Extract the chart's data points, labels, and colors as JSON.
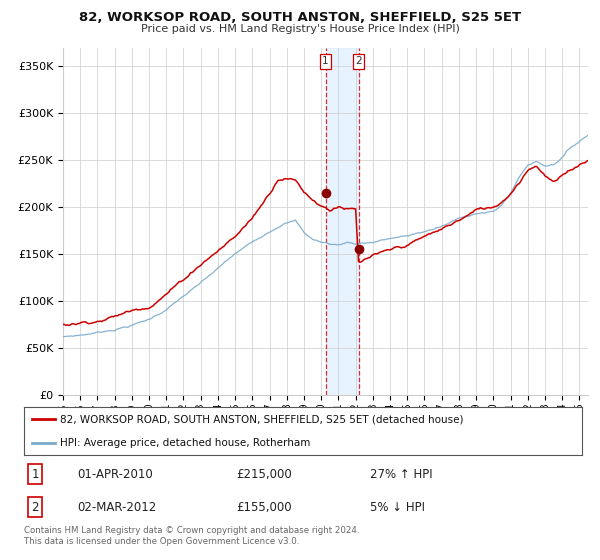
{
  "title": "82, WORKSOP ROAD, SOUTH ANSTON, SHEFFIELD, S25 5ET",
  "subtitle": "Price paid vs. HM Land Registry's House Price Index (HPI)",
  "red_label": "82, WORKSOP ROAD, SOUTH ANSTON, SHEFFIELD, S25 5ET (detached house)",
  "blue_label": "HPI: Average price, detached house, Rotherham",
  "transaction1_date": "01-APR-2010",
  "transaction1_price": "£215,000",
  "transaction1_hpi": "27% ↑ HPI",
  "transaction2_date": "02-MAR-2012",
  "transaction2_price": "£155,000",
  "transaction2_hpi": "5% ↓ HPI",
  "footer": "Contains HM Land Registry data © Crown copyright and database right 2024.\nThis data is licensed under the Open Government Licence v3.0.",
  "ylim": [
    0,
    370000
  ],
  "yticks": [
    0,
    50000,
    100000,
    150000,
    200000,
    250000,
    300000,
    350000
  ],
  "ytick_labels": [
    "£0",
    "£50K",
    "£100K",
    "£150K",
    "£200K",
    "£250K",
    "£300K",
    "£350K"
  ],
  "red_color": "#cc0000",
  "blue_color": "#7aaacc",
  "shade_color": "#ddeeff",
  "grid_color": "#cccccc",
  "bg_color": "#ffffff",
  "transaction1_x": 2010.25,
  "transaction2_x": 2012.17,
  "transaction1_y": 215000,
  "transaction2_y": 155000,
  "xmin": 1995.0,
  "xmax": 2025.5
}
